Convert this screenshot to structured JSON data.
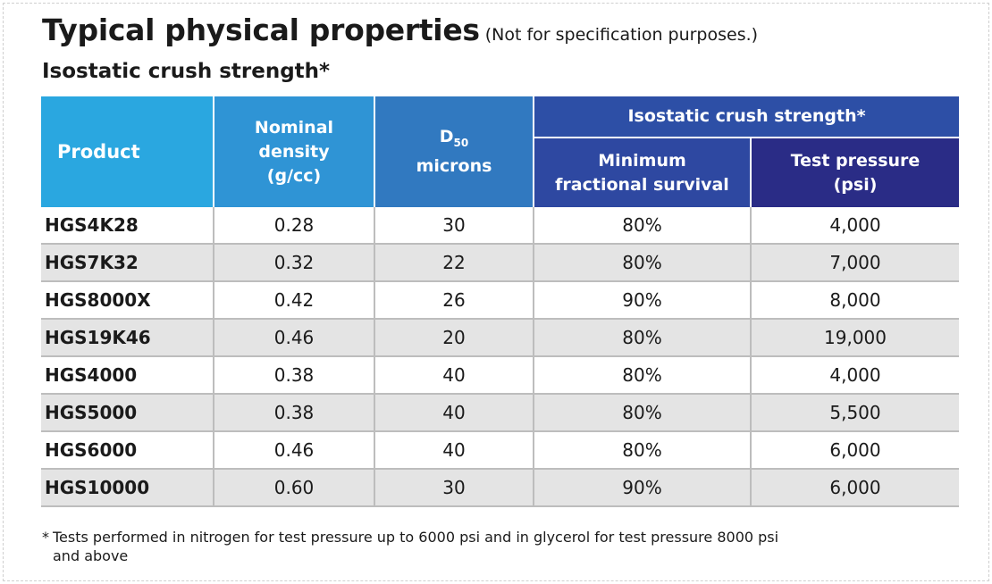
{
  "title": "Typical physical properties",
  "title_note": "(Not for specification purposes.)",
  "subtitle": "Isostatic crush strength*",
  "table": {
    "headers": {
      "product": "Product",
      "density_line1": "Nominal",
      "density_line2": "density",
      "density_line3": "(g/cc)",
      "d50_main": "D",
      "d50_sub": "50",
      "d50_line2": "microns",
      "group": "Isostatic crush strength*",
      "min_line1": "Minimum",
      "min_line2": "fractional survival",
      "test_line1": "Test pressure",
      "test_line2": "(psi)"
    },
    "rows": [
      {
        "product": "HGS4K28",
        "density": "0.28",
        "d50": "30",
        "survival": "80%",
        "pressure": "4,000"
      },
      {
        "product": "HGS7K32",
        "density": "0.32",
        "d50": "22",
        "survival": "80%",
        "pressure": "7,000"
      },
      {
        "product": "HGS8000X",
        "density": "0.42",
        "d50": "26",
        "survival": "90%",
        "pressure": "8,000"
      },
      {
        "product": "HGS19K46",
        "density": "0.46",
        "d50": "20",
        "survival": "80%",
        "pressure": "19,000"
      },
      {
        "product": "HGS4000",
        "density": "0.38",
        "d50": "40",
        "survival": "80%",
        "pressure": "4,000"
      },
      {
        "product": "HGS5000",
        "density": "0.38",
        "d50": "40",
        "survival": "80%",
        "pressure": "5,500"
      },
      {
        "product": "HGS6000",
        "density": "0.46",
        "d50": "40",
        "survival": "80%",
        "pressure": "6,000"
      },
      {
        "product": "HGS10000",
        "density": "0.60",
        "d50": "30",
        "survival": "90%",
        "pressure": "6,000"
      }
    ]
  },
  "footnote": {
    "star": "*",
    "line1": "Tests performed in nitrogen for test pressure up to 6000 psi and in glycerol for test pressure 8000 psi",
    "line2": "and above"
  },
  "colors": {
    "header_product": "#2aa7e0",
    "header_density": "#2f94d5",
    "header_d50": "#3179c0",
    "header_group": "#2d4fa6",
    "header_min": "#2e48a1",
    "header_test": "#2a2c86",
    "row_shade": "#e4e4e4"
  }
}
